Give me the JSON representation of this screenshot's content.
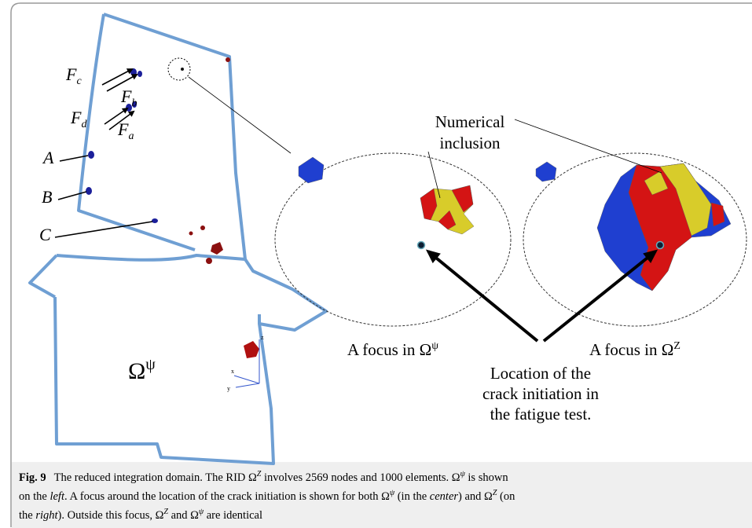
{
  "figure": {
    "labels": [
      {
        "text": "F",
        "sub": "c"
      },
      {
        "text": "F",
        "sub": "b"
      },
      {
        "text": "F",
        "sub": "d"
      },
      {
        "text": "F",
        "sub": "a"
      },
      {
        "text": "A"
      },
      {
        "text": "B"
      },
      {
        "text": "C"
      }
    ],
    "domain_label": {
      "text": "Ω",
      "sup": "ψ"
    },
    "axes": [
      "z",
      "x",
      "y"
    ],
    "numerical_inclusion": [
      "Numerical",
      "inclusion"
    ],
    "focus_left": {
      "text": "A focus in Ω",
      "sup": "ψ"
    },
    "focus_right": {
      "text": "A focus in Ω",
      "sup": "Z"
    },
    "crack_location": [
      "Location of the",
      "crack initiation in",
      "the fatigue test."
    ]
  },
  "caption": {
    "label": "Fig. 9",
    "parts": [
      "The reduced integration domain. The RID Ω",
      "Z",
      " involves 2569 nodes and 1000 elements. Ω",
      "ψ",
      " is shown",
      "on the ",
      "left",
      ". A focus around the location of the crack initiation is shown for both Ω",
      "ψ",
      " (in the ",
      "center",
      ") and Ω",
      "Z",
      " (on",
      "the ",
      "right",
      "). Outside this focus, Ω",
      "Z",
      " and Ω",
      "ψ",
      " are identical"
    ]
  }
}
